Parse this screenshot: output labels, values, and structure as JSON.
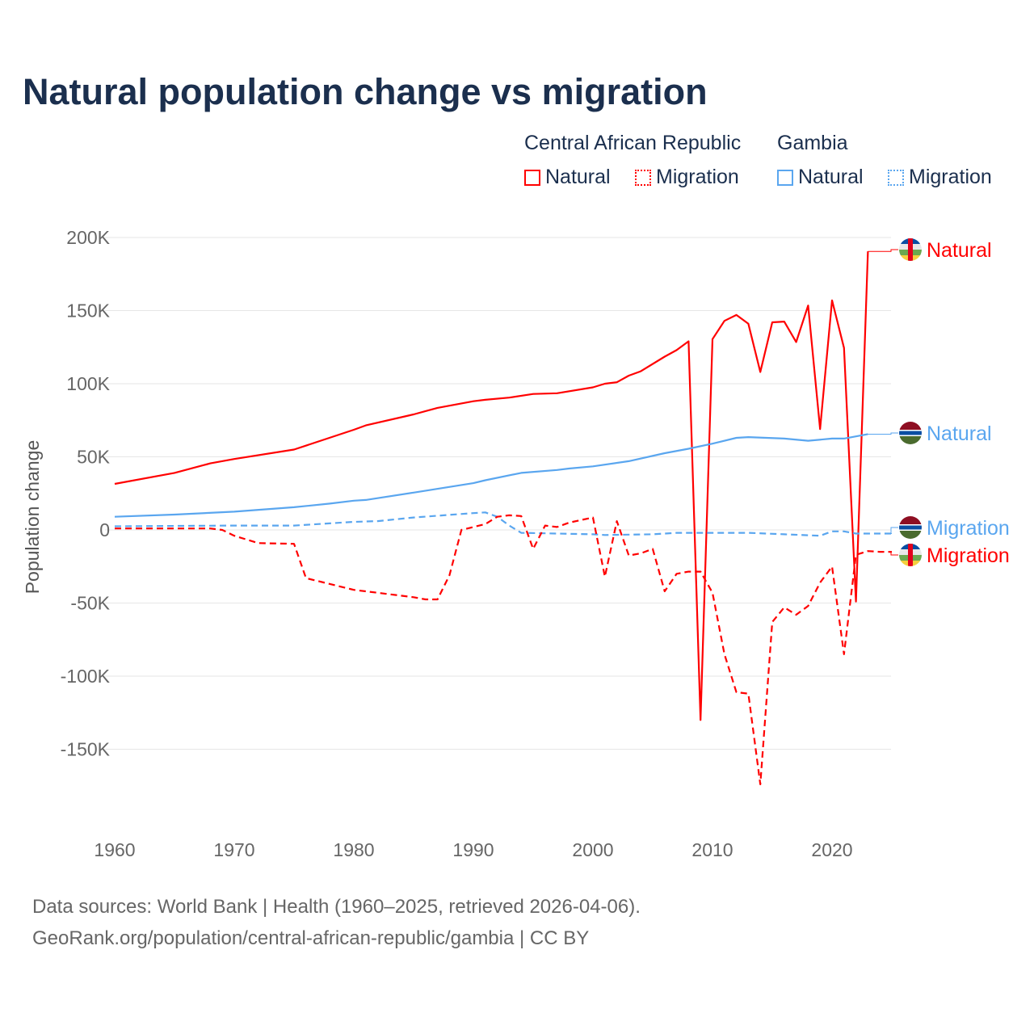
{
  "title": "Natural population change vs migration",
  "legend": {
    "groups": [
      {
        "name": "Central African Republic",
        "items": [
          "Natural",
          "Migration"
        ],
        "color": "#ff0000"
      },
      {
        "name": "Gambia",
        "items": [
          "Natural",
          "Migration"
        ],
        "color": "#5aa6ef"
      }
    ]
  },
  "footer": {
    "line1": "Data sources: World Bank | Health (1960–2025, retrieved 2026-04-06).",
    "line2": "GeoRank.org/population/central-african-republic/gambia | CC BY"
  },
  "chart_data": {
    "type": "line",
    "title": "Natural population change vs migration",
    "ylabel": "Population change",
    "xlabel": "",
    "xlim": [
      1960,
      2025
    ],
    "ylim": [
      -190000,
      200000
    ],
    "xticks": [
      "1960",
      "1970",
      "1980",
      "1990",
      "2000",
      "2010",
      "2020"
    ],
    "yticks": [
      {
        "v": 200000,
        "l": "200K"
      },
      {
        "v": 150000,
        "l": "150K"
      },
      {
        "v": 100000,
        "l": "100K"
      },
      {
        "v": 50000,
        "l": "50K"
      },
      {
        "v": 0,
        "l": "0"
      },
      {
        "v": -50000,
        "l": "-50K"
      },
      {
        "v": -100000,
        "l": "-100K"
      },
      {
        "v": -150000,
        "l": "-150K"
      }
    ],
    "series": [
      {
        "name": "Natural",
        "country": "Central African Republic",
        "color": "#ff0000",
        "dash": false,
        "end_label": "Natural",
        "points": [
          [
            1960,
            31500
          ],
          [
            1965,
            39000
          ],
          [
            1968,
            45500
          ],
          [
            1970,
            48500
          ],
          [
            1975,
            55000
          ],
          [
            1980,
            68500
          ],
          [
            1981,
            71500
          ],
          [
            1985,
            79000
          ],
          [
            1987,
            83500
          ],
          [
            1990,
            88000
          ],
          [
            1991,
            89000
          ],
          [
            1993,
            90500
          ],
          [
            1995,
            93000
          ],
          [
            1997,
            93500
          ],
          [
            2000,
            97500
          ],
          [
            2001,
            100000
          ],
          [
            2002,
            101000
          ],
          [
            2003,
            105500
          ],
          [
            2004,
            108500
          ],
          [
            2006,
            118500
          ],
          [
            2007,
            123000
          ],
          [
            2008,
            129000
          ],
          [
            2009,
            -130000
          ],
          [
            2010,
            130500
          ],
          [
            2011,
            143000
          ],
          [
            2012,
            147000
          ],
          [
            2013,
            141000
          ],
          [
            2014,
            108000
          ],
          [
            2015,
            142000
          ],
          [
            2016,
            142500
          ],
          [
            2017,
            128500
          ],
          [
            2018,
            153500
          ],
          [
            2019,
            69000
          ],
          [
            2020,
            157000
          ],
          [
            2021,
            124500
          ],
          [
            2022,
            -49000
          ],
          [
            2023,
            190500
          ]
        ]
      },
      {
        "name": "Natural",
        "country": "Gambia",
        "color": "#5aa6ef",
        "dash": false,
        "end_label": "Natural",
        "points": [
          [
            1960,
            9000
          ],
          [
            1965,
            10500
          ],
          [
            1970,
            12500
          ],
          [
            1975,
            15500
          ],
          [
            1978,
            18000
          ],
          [
            1980,
            20000
          ],
          [
            1981,
            20500
          ],
          [
            1985,
            25500
          ],
          [
            1990,
            32000
          ],
          [
            1991,
            34000
          ],
          [
            1994,
            39000
          ],
          [
            1997,
            41000
          ],
          [
            1998,
            42000
          ],
          [
            2000,
            43500
          ],
          [
            2003,
            47000
          ],
          [
            2006,
            52500
          ],
          [
            2008,
            55500
          ],
          [
            2010,
            59000
          ],
          [
            2012,
            63000
          ],
          [
            2013,
            63500
          ],
          [
            2016,
            62500
          ],
          [
            2018,
            61000
          ],
          [
            2020,
            62500
          ],
          [
            2021,
            62500
          ],
          [
            2023,
            65500
          ]
        ]
      },
      {
        "name": "Migration",
        "country": "Gambia",
        "color": "#5aa6ef",
        "dash": true,
        "end_label": "Migration",
        "points": [
          [
            1960,
            2500
          ],
          [
            1970,
            3000
          ],
          [
            1975,
            3000
          ],
          [
            1980,
            5500
          ],
          [
            1982,
            6000
          ],
          [
            1985,
            8500
          ],
          [
            1990,
            11500
          ],
          [
            1991,
            12000
          ],
          [
            1992,
            9000
          ],
          [
            1993,
            3000
          ],
          [
            1994,
            -2000
          ],
          [
            2000,
            -3000
          ],
          [
            2001,
            -3500
          ],
          [
            2005,
            -3000
          ],
          [
            2007,
            -2000
          ],
          [
            2013,
            -2000
          ],
          [
            2016,
            -3000
          ],
          [
            2019,
            -4000
          ],
          [
            2020,
            -1000
          ],
          [
            2021,
            -1000
          ],
          [
            2022,
            -2500
          ],
          [
            2025,
            -2500
          ]
        ]
      },
      {
        "name": "Migration",
        "country": "Central African Republic",
        "color": "#ff0000",
        "dash": true,
        "end_label": "Migration",
        "points": [
          [
            1960,
            1000
          ],
          [
            1968,
            1000
          ],
          [
            1969,
            0
          ],
          [
            1970,
            -4000
          ],
          [
            1972,
            -9000
          ],
          [
            1975,
            -9500
          ],
          [
            1976,
            -33000
          ],
          [
            1980,
            -41000
          ],
          [
            1981,
            -42000
          ],
          [
            1985,
            -46000
          ],
          [
            1986,
            -47500
          ],
          [
            1987,
            -47500
          ],
          [
            1988,
            -31000
          ],
          [
            1989,
            0
          ],
          [
            1991,
            4000
          ],
          [
            1992,
            9000
          ],
          [
            1993,
            10000
          ],
          [
            1994,
            9500
          ],
          [
            1995,
            -13000
          ],
          [
            1996,
            3000
          ],
          [
            1997,
            2000
          ],
          [
            1998,
            5000
          ],
          [
            2000,
            8500
          ],
          [
            2001,
            -32000
          ],
          [
            2002,
            6000
          ],
          [
            2003,
            -17500
          ],
          [
            2004,
            -16000
          ],
          [
            2005,
            -13000
          ],
          [
            2006,
            -42000
          ],
          [
            2007,
            -30000
          ],
          [
            2008,
            -28500
          ],
          [
            2009,
            -28500
          ],
          [
            2010,
            -43000
          ],
          [
            2011,
            -85000
          ],
          [
            2012,
            -111000
          ],
          [
            2013,
            -112000
          ],
          [
            2014,
            -174000
          ],
          [
            2015,
            -63000
          ],
          [
            2016,
            -53000
          ],
          [
            2017,
            -58000
          ],
          [
            2018,
            -52000
          ],
          [
            2019,
            -36000
          ],
          [
            2020,
            -25000
          ],
          [
            2021,
            -85000
          ],
          [
            2022,
            -17000
          ],
          [
            2023,
            -14500
          ],
          [
            2024,
            -15000
          ],
          [
            2025,
            -15000
          ]
        ]
      }
    ]
  }
}
